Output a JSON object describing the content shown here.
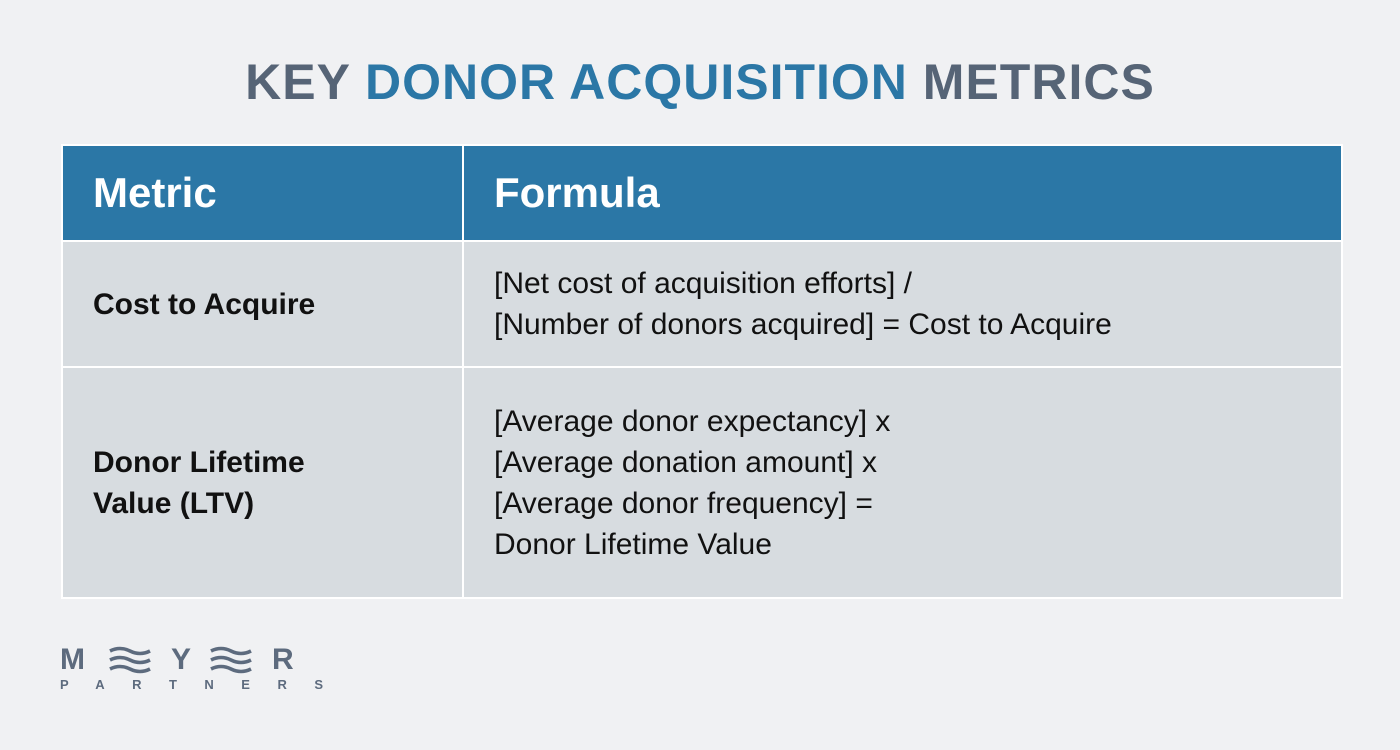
{
  "title": {
    "part1": "KEY ",
    "part2": "DONOR ACQUISITION",
    "part3": " METRICS"
  },
  "table": {
    "headers": [
      "Metric",
      "Formula"
    ],
    "rows": [
      {
        "metric": "Cost to Acquire",
        "formula": [
          "[Net cost of acquisition efforts] /",
          "[Number of donors acquired] = Cost to Acquire"
        ]
      },
      {
        "metric": "Donor Lifetime Value (LTV)",
        "formula": [
          "[Average donor expectancy] x",
          "[Average donation amount] x",
          "[Average donor frequency] =",
          "Donor Lifetime Value"
        ]
      }
    ]
  },
  "logo": {
    "letters": [
      "M",
      "Y",
      "R"
    ],
    "subtitle": "PARTNERS",
    "wave_icon": "wave-lines-icon"
  },
  "colors": {
    "background": "#f0f1f3",
    "accent_blue": "#2b77a6",
    "title_gray": "#566476",
    "cell_gray": "#d7dce0",
    "logo_gray": "#5d6b7e"
  }
}
